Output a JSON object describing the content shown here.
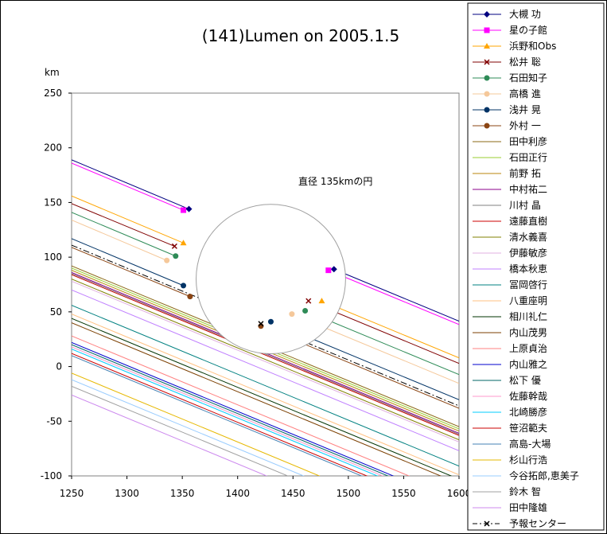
{
  "chart_data": {
    "type": "line",
    "title": "(141)Lumen on 2005.1.5",
    "ylabel": "km",
    "xlim": [
      1250,
      1600
    ],
    "ylim": [
      -100,
      250
    ],
    "x_ticks": [
      1250,
      1300,
      1350,
      1400,
      1450,
      1500,
      1550,
      1600
    ],
    "y_ticks": [
      250,
      200,
      150,
      100,
      50,
      0,
      -50,
      -100
    ],
    "annotation": "直径 135kmの円",
    "circle": {
      "cx": 1430,
      "cy": 80,
      "r": 67.5
    },
    "slope": -0.42,
    "series": [
      {
        "name": "大槻 功",
        "color": "#000080",
        "marker": "diamond",
        "y_at_1250": 189,
        "chord": [
          1356,
          144,
          1487,
          89
        ]
      },
      {
        "name": "星の子館",
        "color": "#ff00ff",
        "marker": "square",
        "y_at_1250": 186,
        "chord": [
          1351,
          143,
          1482,
          88
        ]
      },
      {
        "name": "浜野和Obs",
        "color": "#ffa500",
        "marker": "triangle",
        "y_at_1250": 156,
        "chord": [
          1351,
          113,
          1476,
          60
        ]
      },
      {
        "name": "松井 聡",
        "color": "#800000",
        "marker": "x",
        "y_at_1250": 149,
        "chord": [
          1343,
          110,
          1464,
          60
        ]
      },
      {
        "name": "石田知子",
        "color": "#2e8b57",
        "marker": "star",
        "y_at_1250": 141,
        "chord": [
          1344,
          101,
          1461,
          51
        ]
      },
      {
        "name": "高橋 進",
        "color": "#f5c89a",
        "marker": "circle",
        "y_at_1250": 134,
        "chord": [
          1336,
          97,
          1449,
          48
        ]
      },
      {
        "name": "浅井 晃",
        "color": "#003366",
        "marker": "plus",
        "y_at_1250": 117,
        "chord": [
          1351,
          74,
          1430,
          41
        ]
      },
      {
        "name": "外村 一",
        "color": "#8b4513",
        "marker": "dash",
        "y_at_1250": 109,
        "chord": [
          1357,
          64,
          1421,
          37
        ]
      },
      {
        "name": "田中利彦",
        "color": "#8b6914",
        "y_at_1250": 92
      },
      {
        "name": "石田正行",
        "color": "#9acd32",
        "y_at_1250": 90
      },
      {
        "name": "前野 拓",
        "color": "#b8860b",
        "y_at_1250": 88
      },
      {
        "name": "中村祐二",
        "color": "#8b008b",
        "y_at_1250": 86
      },
      {
        "name": "川村 晶",
        "color": "#808080",
        "y_at_1250": 85
      },
      {
        "name": "遠藤直樹",
        "color": "#cd0000",
        "y_at_1250": 84
      },
      {
        "name": "清水義喜",
        "color": "#808000",
        "y_at_1250": 80
      },
      {
        "name": "伊藤敏彦",
        "color": "#e0b0e0",
        "y_at_1250": 78
      },
      {
        "name": "橋本秋恵",
        "color": "#c080ff",
        "y_at_1250": 70
      },
      {
        "name": "冨岡啓行",
        "color": "#008080",
        "y_at_1250": 56
      },
      {
        "name": "八重座明",
        "color": "#ffc080",
        "y_at_1250": 48
      },
      {
        "name": "相川礼仁",
        "color": "#003300",
        "y_at_1250": 44
      },
      {
        "name": "内山茂男",
        "color": "#7b3f00",
        "y_at_1250": 40
      },
      {
        "name": "上原貞治",
        "color": "#ff8080",
        "y_at_1250": 28
      },
      {
        "name": "内山雅之",
        "color": "#0000cd",
        "y_at_1250": 22
      },
      {
        "name": "松下 優",
        "color": "#006666",
        "y_at_1250": 20
      },
      {
        "name": "佐藤幹哉",
        "color": "#ff99cc",
        "y_at_1250": 18
      },
      {
        "name": "北崎勝彦",
        "color": "#00ccff",
        "y_at_1250": 16
      },
      {
        "name": "笹沼範夫",
        "color": "#cc0000",
        "y_at_1250": 12
      },
      {
        "name": "高島-大場",
        "color": "#4682b4",
        "y_at_1250": 10
      },
      {
        "name": "杉山行浩",
        "color": "#e6b800",
        "y_at_1250": -6
      },
      {
        "name": "今谷拓郎,恵美子",
        "color": "#99ccff",
        "y_at_1250": -12
      },
      {
        "name": "鈴木 智",
        "color": "#a0a0a0",
        "y_at_1250": -18
      },
      {
        "name": "田中隆雄",
        "color": "#cc88ee",
        "y_at_1250": -26
      }
    ],
    "prediction": {
      "name": "予報センター",
      "color": "#000000",
      "y_at_1250": 111,
      "marker": "x",
      "mark_at": 1421
    }
  }
}
